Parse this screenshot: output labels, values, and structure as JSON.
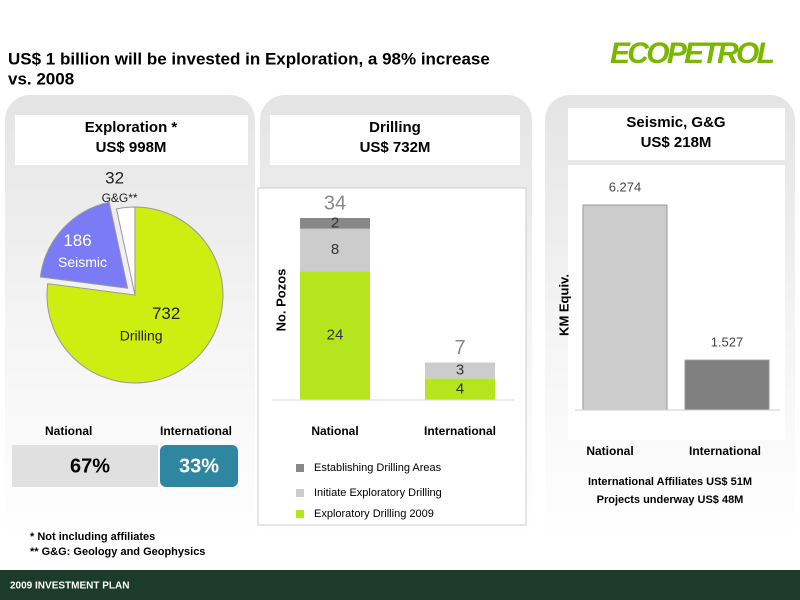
{
  "title": "US$ 1 billion will be invested in Exploration, a 98% increase vs. 2008",
  "logo": "ECOPETROL",
  "panels": [
    {
      "heading": "Exploration *",
      "amount": "US$ 998M"
    },
    {
      "heading": "Drilling",
      "amount": "US$ 732M"
    },
    {
      "heading": "Seismic, G&G",
      "amount": "US$ 218M"
    }
  ],
  "split": {
    "labels": [
      "National",
      "International"
    ],
    "values": [
      67,
      33
    ],
    "value_labels": [
      "67%",
      "33%"
    ]
  },
  "seismic_notes": [
    "International Affiliates  US$ 51M",
    "Projects underway  US$ 48M"
  ],
  "footnotes": [
    "*   Not including affiliates",
    "** G&G: Geology and Geophysics"
  ],
  "footer": "2009 INVESTMENT PLAN",
  "chart_data": [
    {
      "type": "pie",
      "categories": [
        "Drilling",
        "Seismic",
        "G&G**"
      ],
      "values": [
        732,
        186,
        32
      ],
      "colors": [
        "#ccee11",
        "#7b7bf5",
        "#ffffff"
      ],
      "explode": [
        false,
        true,
        false
      ]
    },
    {
      "type": "stacked_bar",
      "ylabel": "No. Pozos",
      "categories": [
        "National",
        "International"
      ],
      "series": [
        {
          "name": "Exploratory Drilling 2009",
          "color": "#b5e61d",
          "values": [
            24,
            4
          ]
        },
        {
          "name": "Initiate Exploratory Drilling",
          "color": "#cccccc",
          "values": [
            8,
            3
          ]
        },
        {
          "name": "Establishing Drilling Areas",
          "color": "#888888",
          "values": [
            2,
            null
          ]
        }
      ],
      "totals": [
        34,
        7
      ]
    },
    {
      "type": "bar",
      "ylabel": "KM Equiv.",
      "categories": [
        "National",
        "International"
      ],
      "values": [
        6274,
        1527
      ],
      "value_labels": [
        "6.274",
        "1.527"
      ],
      "colors": [
        "#cccccc",
        "#808080"
      ]
    }
  ]
}
